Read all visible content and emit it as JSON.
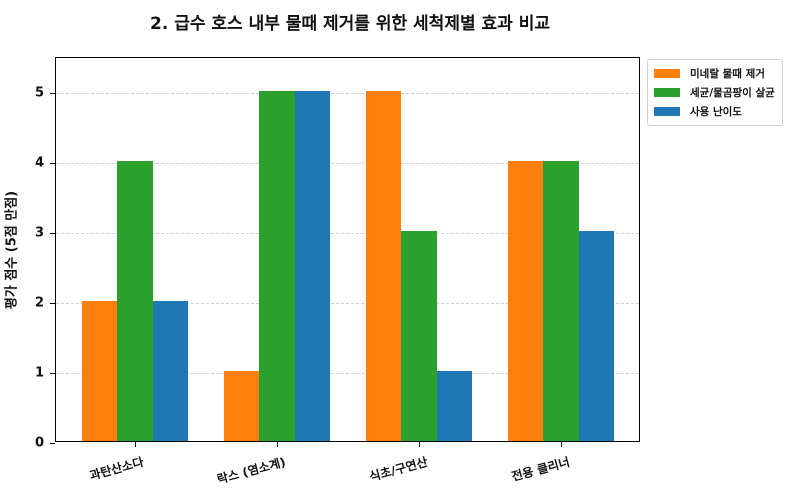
{
  "chart_data": {
    "type": "bar",
    "title": "2. 급수 호스 내부 물때 제거를 위한 세척제별 효과 비교",
    "xlabel": "",
    "ylabel": "평가 점수 (5점 만점)",
    "ylim": [
      0,
      5.5
    ],
    "yticks": [
      0,
      1,
      2,
      3,
      4,
      5
    ],
    "grid": true,
    "legend_position": "upper right outside",
    "categories": [
      "과탄산소다",
      "락스 (염소계)",
      "식초/구연산",
      "전용 클리너"
    ],
    "series": [
      {
        "name": "미네랄 물때 제거",
        "color": "#ff7f0e",
        "values": [
          2,
          1,
          5,
          4
        ]
      },
      {
        "name": "세균/물곰팡이 살균",
        "color": "#2ca02c",
        "values": [
          4,
          5,
          3,
          4
        ]
      },
      {
        "name": "사용 난이도",
        "color": "#1f77b4",
        "values": [
          2,
          5,
          1,
          3
        ]
      }
    ]
  },
  "labels": {
    "title": "2. 급수 호스 내부 물때 제거를 위한 세척제별 효과 비교",
    "ylabel": "평가 점수 (5점 만점)",
    "yticks": [
      "0",
      "1",
      "2",
      "3",
      "4",
      "5"
    ],
    "categories": [
      "과탄산소다",
      "락스 (염소계)",
      "식초/구연산",
      "전용 클리너"
    ],
    "legend": [
      "미네랄 물때 제거",
      "세균/물곰팡이 살균",
      "사용 난이도"
    ]
  }
}
